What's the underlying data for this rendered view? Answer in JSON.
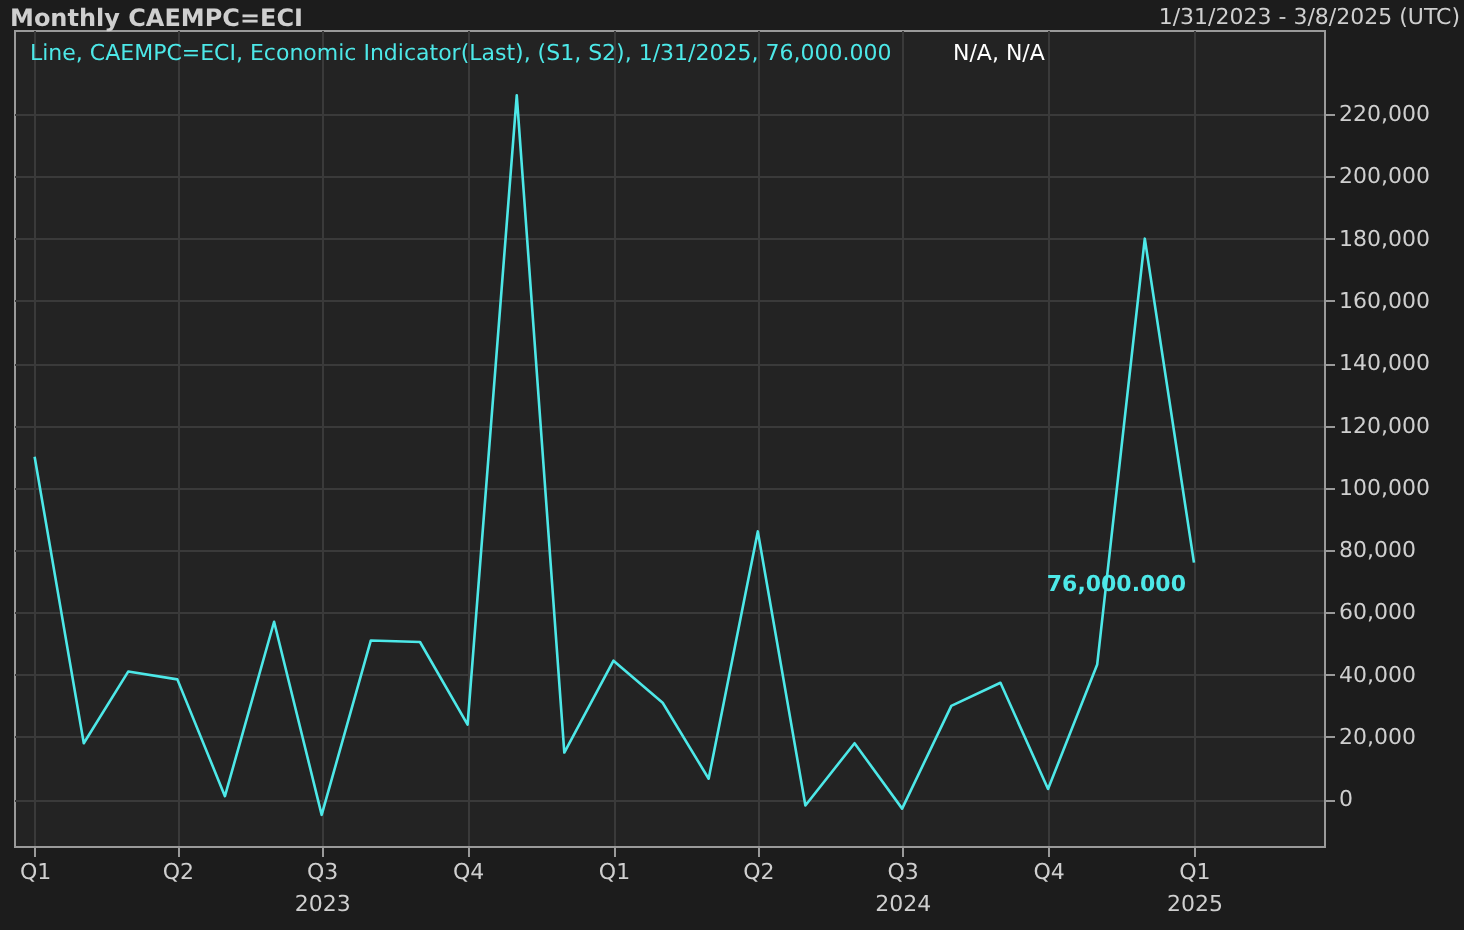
{
  "chart_data": {
    "type": "line",
    "title": "Monthly CAEMPC=ECI",
    "subtitle": "1/31/2023 - 3/8/2025 (UTC)",
    "x": [
      "2023-01",
      "2023-02",
      "2023-03",
      "2023-04",
      "2023-05",
      "2023-06",
      "2023-07",
      "2023-08",
      "2023-09",
      "2023-10",
      "2023-11",
      "2023-12",
      "2024-01",
      "2024-02",
      "2024-03",
      "2024-04",
      "2024-05",
      "2024-06",
      "2024-07",
      "2024-08",
      "2024-09",
      "2024-10",
      "2024-11",
      "2024-12",
      "2025-01"
    ],
    "series": [
      {
        "name": "Line, CAEMPC=ECI, Economic Indicator(Last), (S1, S2), 1/31/2025, 76,000.000",
        "color": "#4de8e8",
        "values": [
          110000,
          18000,
          41000,
          38500,
          1000,
          57000,
          -5000,
          51000,
          50500,
          24000,
          226000,
          15000,
          44500,
          31000,
          6600,
          86000,
          -2000,
          18000,
          -3000,
          30000,
          37400,
          3300,
          43300,
          180000,
          76000
        ],
        "value_labels": [
          null,
          null,
          null,
          null,
          null,
          null,
          null,
          null,
          null,
          null,
          null,
          null,
          null,
          null,
          null,
          null,
          null,
          null,
          null,
          null,
          null,
          null,
          null,
          null,
          "76,000.000"
        ]
      }
    ],
    "annotations": [
      "N/A, N/A"
    ],
    "xlim": [
      "2022-12-19",
      "2025-03-24"
    ],
    "xticks": [
      {
        "value": "2023-01",
        "label": "Q1"
      },
      {
        "value": "2023-04",
        "label": "Q2"
      },
      {
        "value": "2023-07",
        "label": "Q3\n2023"
      },
      {
        "value": "2023-10",
        "label": "Q4"
      },
      {
        "value": "2024-01",
        "label": "Q1"
      },
      {
        "value": "2024-04",
        "label": "Q2"
      },
      {
        "value": "2024-07",
        "label": "Q3\n2024"
      },
      {
        "value": "2024-10",
        "label": "Q4"
      },
      {
        "value": "2025-01",
        "label": "Q1\n2025"
      }
    ],
    "ylim": [
      -15000,
      247000
    ],
    "yticks": [
      0,
      {
        "value": 20000,
        "label": "20,000"
      },
      {
        "value": 40000,
        "label": "40,000"
      },
      {
        "value": 60000,
        "label": "60,000"
      },
      {
        "value": 80000,
        "label": "80,000"
      },
      {
        "value": 100000,
        "label": "100,000"
      },
      {
        "value": 120000,
        "label": "120,000"
      },
      {
        "value": 140000,
        "label": "140,000"
      },
      {
        "value": 160000,
        "label": "160,000"
      },
      {
        "value": 180000,
        "label": "180,000"
      },
      {
        "value": 200000,
        "label": "200,000"
      },
      {
        "value": 220000,
        "label": "220,000"
      }
    ],
    "grid": true,
    "legend": "top left",
    "marker": "none",
    "line_style": "solid"
  }
}
